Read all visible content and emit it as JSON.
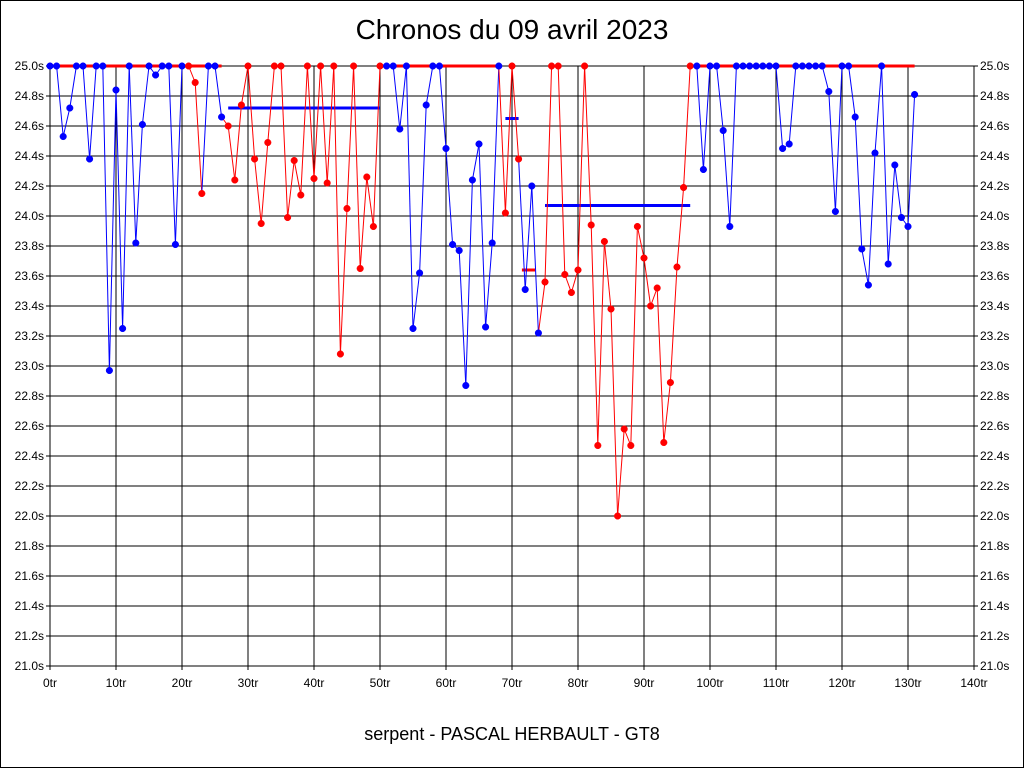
{
  "chart_data": {
    "type": "line",
    "title": "Chronos du 09 avril 2023",
    "subtitle": "serpent - PASCAL HERBAULT - GT8",
    "x_ticks": [
      "0tr",
      "10tr",
      "20tr",
      "30tr",
      "40tr",
      "50tr",
      "60tr",
      "70tr",
      "80tr",
      "90tr",
      "100tr",
      "110tr",
      "120tr",
      "130tr",
      "140tr"
    ],
    "y_ticks": [
      "21.0s",
      "21.2s",
      "21.4s",
      "21.6s",
      "21.8s",
      "22.0s",
      "22.2s",
      "22.4s",
      "22.6s",
      "22.8s",
      "23.0s",
      "23.2s",
      "23.4s",
      "23.6s",
      "23.8s",
      "24.0s",
      "24.2s",
      "24.4s",
      "24.6s",
      "24.8s",
      "25.0s"
    ],
    "xlim": [
      0,
      140
    ],
    "ylim": [
      21.0,
      25.0
    ],
    "grid": true,
    "colors": {
      "blue": "#0000ff",
      "red": "#ff0000"
    },
    "points": [
      [
        0,
        25.0,
        "b"
      ],
      [
        1,
        25.0,
        "b"
      ],
      [
        2,
        24.53,
        "b"
      ],
      [
        3,
        24.72,
        "b"
      ],
      [
        4,
        25.0,
        "b"
      ],
      [
        5,
        25.0,
        "b"
      ],
      [
        6,
        24.38,
        "b"
      ],
      [
        7,
        25.0,
        "b"
      ],
      [
        8,
        25.0,
        "b"
      ],
      [
        9,
        22.97,
        "b"
      ],
      [
        10,
        24.84,
        "b"
      ],
      [
        11,
        23.25,
        "b"
      ],
      [
        12,
        25.0,
        "b"
      ],
      [
        13,
        23.82,
        "b"
      ],
      [
        14,
        24.61,
        "b"
      ],
      [
        15,
        25.0,
        "b"
      ],
      [
        16,
        24.94,
        "b"
      ],
      [
        17,
        25.0,
        "b"
      ],
      [
        18,
        25.0,
        "b"
      ],
      [
        19,
        23.81,
        "b"
      ],
      [
        20,
        25.0,
        "b"
      ],
      [
        21,
        25.0,
        "r"
      ],
      [
        22,
        24.89,
        "r"
      ],
      [
        23,
        24.15,
        "r"
      ],
      [
        24,
        25.0,
        "b"
      ],
      [
        25,
        25.0,
        "b"
      ],
      [
        26,
        24.66,
        "b"
      ],
      [
        27,
        24.6,
        "r"
      ],
      [
        28,
        24.24,
        "r"
      ],
      [
        29,
        24.74,
        "r"
      ],
      [
        30,
        25.0,
        "r"
      ],
      [
        31,
        24.38,
        "r"
      ],
      [
        32,
        23.95,
        "r"
      ],
      [
        33,
        24.49,
        "r"
      ],
      [
        34,
        25.0,
        "r"
      ],
      [
        35,
        25.0,
        "r"
      ],
      [
        36,
        23.99,
        "r"
      ],
      [
        37,
        24.37,
        "r"
      ],
      [
        38,
        24.14,
        "r"
      ],
      [
        39,
        25.0,
        "r"
      ],
      [
        40,
        24.25,
        "r"
      ],
      [
        41,
        25.0,
        "r"
      ],
      [
        42,
        24.22,
        "r"
      ],
      [
        43,
        25.0,
        "r"
      ],
      [
        44,
        23.08,
        "r"
      ],
      [
        45,
        24.05,
        "r"
      ],
      [
        46,
        25.0,
        "r"
      ],
      [
        47,
        23.65,
        "r"
      ],
      [
        48,
        24.26,
        "r"
      ],
      [
        49,
        23.93,
        "r"
      ],
      [
        50,
        25.0,
        "r"
      ],
      [
        51,
        25.0,
        "b"
      ],
      [
        52,
        25.0,
        "b"
      ],
      [
        53,
        24.58,
        "b"
      ],
      [
        54,
        25.0,
        "b"
      ],
      [
        55,
        23.25,
        "b"
      ],
      [
        56,
        23.62,
        "b"
      ],
      [
        57,
        24.74,
        "b"
      ],
      [
        58,
        25.0,
        "b"
      ],
      [
        59,
        25.0,
        "b"
      ],
      [
        60,
        24.45,
        "b"
      ],
      [
        61,
        23.81,
        "b"
      ],
      [
        62,
        23.77,
        "b"
      ],
      [
        63,
        22.87,
        "b"
      ],
      [
        64,
        24.24,
        "b"
      ],
      [
        65,
        24.48,
        "b"
      ],
      [
        66,
        23.26,
        "b"
      ],
      [
        67,
        23.82,
        "b"
      ],
      [
        68,
        25.0,
        "b"
      ],
      [
        69,
        24.02,
        "r"
      ],
      [
        70,
        25.0,
        "r"
      ],
      [
        71,
        24.38,
        "r"
      ],
      [
        72,
        23.51,
        "b"
      ],
      [
        73,
        24.2,
        "b"
      ],
      [
        74,
        23.22,
        "b"
      ],
      [
        75,
        23.56,
        "r"
      ],
      [
        76,
        25.0,
        "r"
      ],
      [
        77,
        25.0,
        "r"
      ],
      [
        78,
        23.61,
        "r"
      ],
      [
        79,
        23.49,
        "r"
      ],
      [
        80,
        23.64,
        "r"
      ],
      [
        81,
        25.0,
        "r"
      ],
      [
        82,
        23.94,
        "r"
      ],
      [
        83,
        22.47,
        "r"
      ],
      [
        84,
        23.83,
        "r"
      ],
      [
        85,
        23.38,
        "r"
      ],
      [
        86,
        22.0,
        "r"
      ],
      [
        87,
        22.58,
        "r"
      ],
      [
        88,
        22.47,
        "r"
      ],
      [
        89,
        23.93,
        "r"
      ],
      [
        90,
        23.72,
        "r"
      ],
      [
        91,
        23.4,
        "r"
      ],
      [
        92,
        23.52,
        "r"
      ],
      [
        93,
        22.49,
        "r"
      ],
      [
        94,
        22.89,
        "r"
      ],
      [
        95,
        23.66,
        "r"
      ],
      [
        96,
        24.19,
        "r"
      ],
      [
        97,
        25.0,
        "r"
      ],
      [
        98,
        25.0,
        "b"
      ],
      [
        99,
        24.31,
        "b"
      ],
      [
        100,
        25.0,
        "b"
      ],
      [
        101,
        25.0,
        "b"
      ],
      [
        102,
        24.57,
        "b"
      ],
      [
        103,
        23.93,
        "b"
      ],
      [
        104,
        25.0,
        "b"
      ],
      [
        105,
        25.0,
        "b"
      ],
      [
        106,
        25.0,
        "b"
      ],
      [
        107,
        25.0,
        "b"
      ],
      [
        108,
        25.0,
        "b"
      ],
      [
        109,
        25.0,
        "b"
      ],
      [
        110,
        25.0,
        "b"
      ],
      [
        111,
        24.45,
        "b"
      ],
      [
        112,
        24.48,
        "b"
      ],
      [
        113,
        25.0,
        "b"
      ],
      [
        114,
        25.0,
        "b"
      ],
      [
        115,
        25.0,
        "b"
      ],
      [
        116,
        25.0,
        "b"
      ],
      [
        117,
        25.0,
        "b"
      ],
      [
        118,
        24.83,
        "b"
      ],
      [
        119,
        24.03,
        "b"
      ],
      [
        120,
        25.0,
        "b"
      ],
      [
        121,
        25.0,
        "b"
      ],
      [
        122,
        24.66,
        "b"
      ],
      [
        123,
        23.78,
        "b"
      ],
      [
        124,
        23.54,
        "b"
      ],
      [
        125,
        24.42,
        "b"
      ],
      [
        126,
        25.0,
        "b"
      ],
      [
        127,
        23.68,
        "b"
      ],
      [
        128,
        24.34,
        "b"
      ],
      [
        129,
        23.99,
        "b"
      ],
      [
        130,
        23.93,
        "b"
      ],
      [
        131,
        24.81,
        "b"
      ]
    ],
    "segments": [
      {
        "c": "r",
        "x1": 0,
        "x2": 20,
        "y": 25.0
      },
      {
        "c": "r",
        "x1": 20,
        "x2": 26,
        "y": 25.0
      },
      {
        "c": "b",
        "x1": 27,
        "x2": 50,
        "y": 24.72
      },
      {
        "c": "r",
        "x1": 50,
        "x2": 68,
        "y": 25.0
      },
      {
        "c": "b",
        "x1": 69,
        "x2": 71,
        "y": 24.65
      },
      {
        "c": "r",
        "x1": 71.5,
        "x2": 73.5,
        "y": 23.64
      },
      {
        "c": "b",
        "x1": 75,
        "x2": 97,
        "y": 24.07
      },
      {
        "c": "r",
        "x1": 97,
        "x2": 131,
        "y": 25.0
      }
    ]
  }
}
